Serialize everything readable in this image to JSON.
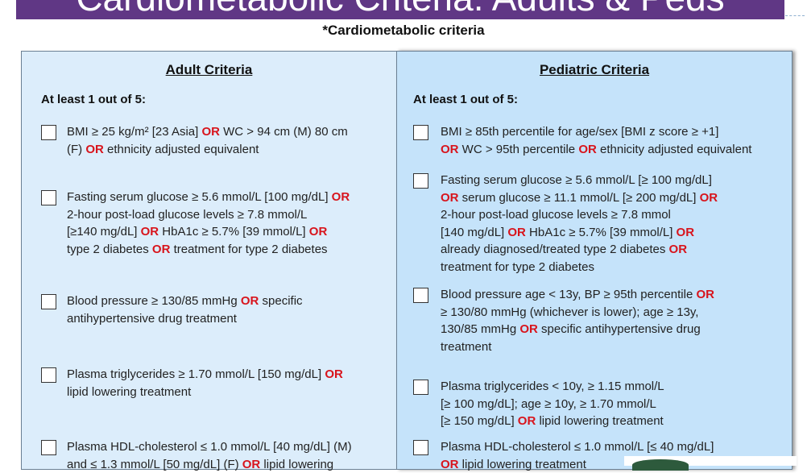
{
  "banner": {
    "title": "Cardiometabolic Criteria: Adults & Peds"
  },
  "subtitle": "*Cardiometabolic criteria",
  "adult": {
    "header": "Adult Criteria",
    "lead": "At least 1 out of 5:",
    "items": [
      [
        [
          [
            "BMI ≥ 25 kg/m² [23 Asia] ",
            0
          ],
          [
            "OR",
            1
          ],
          [
            " WC > 94 cm (M) 80 cm",
            0
          ]
        ],
        [
          [
            "(F) ",
            0
          ],
          [
            "OR",
            1
          ],
          [
            " ethnicity adjusted equivalent",
            0
          ]
        ]
      ],
      [
        [
          [
            "Fasting serum glucose ≥ 5.6 mmol/L [100 mg/dL] ",
            0
          ],
          [
            "OR",
            1
          ]
        ],
        [
          [
            "2-hour post-load glucose levels ≥ 7.8 mmol/L",
            0
          ]
        ],
        [
          [
            "[≥140 mg/dL] ",
            0
          ],
          [
            "OR",
            1
          ],
          [
            " HbA1c ≥ 5.7% [39 mmol/L] ",
            0
          ],
          [
            "OR",
            1
          ]
        ],
        [
          [
            "type 2 diabetes ",
            0
          ],
          [
            "OR",
            1
          ],
          [
            " treatment for type 2 diabetes",
            0
          ]
        ]
      ],
      [
        [
          [
            "Blood pressure ≥ 130/85 mmHg ",
            0
          ],
          [
            "OR",
            1
          ],
          [
            " specific",
            0
          ]
        ],
        [
          [
            "antihypertensive drug treatment",
            0
          ]
        ]
      ],
      [
        [
          [
            "Plasma triglycerides ≥ 1.70 mmol/L  [150 mg/dL] ",
            0
          ],
          [
            "OR",
            1
          ]
        ],
        [
          [
            "lipid lowering treatment",
            0
          ]
        ]
      ],
      [
        [
          [
            "Plasma HDL-cholesterol ≤ 1.0 mmol/L [40 mg/dL] (M)",
            0
          ]
        ],
        [
          [
            "and ≤ 1.3 mmol/L [50 mg/dL] (F) ",
            0
          ],
          [
            "OR",
            1
          ],
          [
            " lipid lowering",
            0
          ]
        ]
      ]
    ]
  },
  "pediatric": {
    "header": "Pediatric Criteria",
    "lead": "At least 1 out of 5:",
    "items": [
      [
        [
          [
            "BMI ≥ 85th percentile for age/sex [BMI z score ≥ +1]",
            0
          ]
        ],
        [
          [
            "OR",
            1
          ],
          [
            " WC > 95th percentile ",
            0
          ],
          [
            "OR",
            1
          ],
          [
            " ethnicity adjusted equivalent",
            0
          ]
        ]
      ],
      [
        [
          [
            "Fasting serum glucose ≥ 5.6 mmol/L [≥ 100 mg/dL]",
            0
          ]
        ],
        [
          [
            "OR",
            1
          ],
          [
            " serum glucose ≥ 11.1 mmol/L [≥ 200 mg/dL] ",
            0
          ],
          [
            "OR",
            1
          ]
        ],
        [
          [
            "2-hour post-load glucose levels ≥ 7.8 mmol",
            0
          ]
        ],
        [
          [
            "[140 mg/dL] ",
            0
          ],
          [
            "OR",
            1
          ],
          [
            " HbA1c ≥ 5.7% [39 mmol/L] ",
            0
          ],
          [
            "OR",
            1
          ]
        ],
        [
          [
            "already diagnosed/treated type 2 diabetes ",
            0
          ],
          [
            "OR",
            1
          ]
        ],
        [
          [
            "treatment for type 2 diabetes",
            0
          ]
        ]
      ],
      [
        [
          [
            "Blood pressure age < 13y, BP ≥  95th percentile ",
            0
          ],
          [
            "OR",
            1
          ]
        ],
        [
          [
            "≥ 130/80 mmHg (whichever is lower); age ≥ 13y,",
            0
          ]
        ],
        [
          [
            "130/85 mmHg ",
            0
          ],
          [
            "OR",
            1
          ],
          [
            " specific antihypertensive drug",
            0
          ]
        ],
        [
          [
            "treatment",
            0
          ]
        ]
      ],
      [
        [
          [
            "Plasma triglycerides < 10y, ≥ 1.15 mmol/L",
            0
          ]
        ],
        [
          [
            "[≥ 100 mg/dL]; age ≥ 10y, ≥ 1.70 mmol/L",
            0
          ]
        ],
        [
          [
            "[≥ 150 mg/dL] ",
            0
          ],
          [
            "OR",
            1
          ],
          [
            " lipid lowering treatment",
            0
          ]
        ]
      ],
      [
        [
          [
            "Plasma HDL-cholesterol ≤ 1.0 mmol/L [≤ 40 mg/dL]",
            0
          ]
        ],
        [
          [
            "OR",
            1
          ],
          [
            " lipid lowering treatment",
            0
          ]
        ]
      ]
    ]
  }
}
